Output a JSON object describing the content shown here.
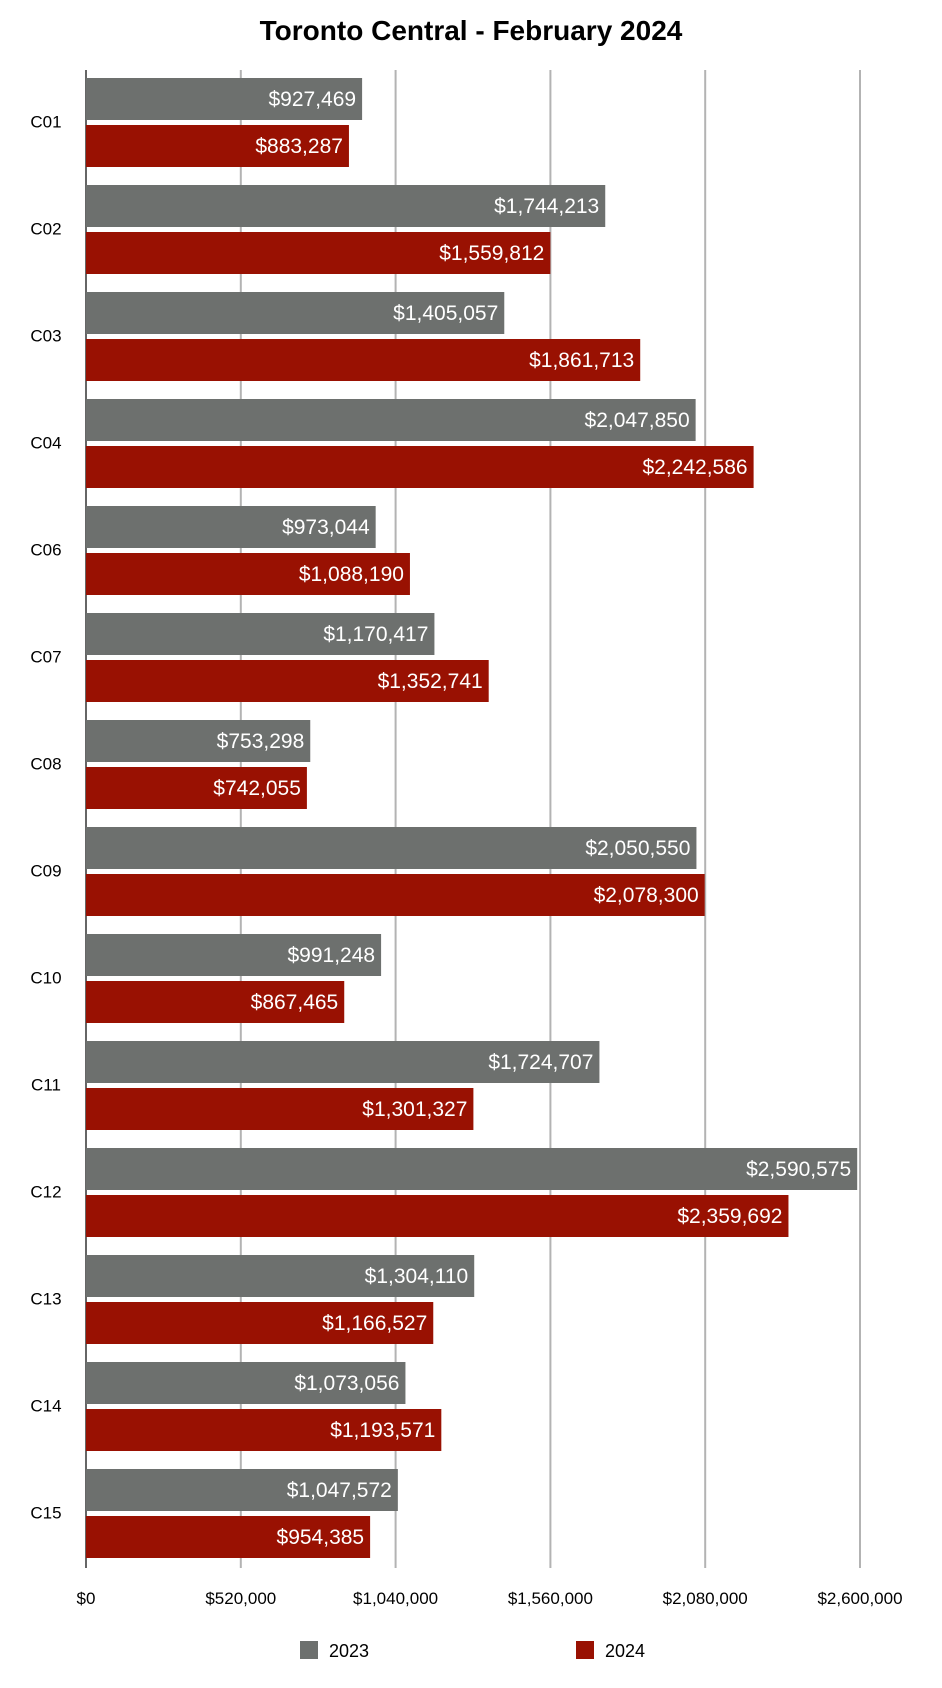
{
  "chart_data": {
    "type": "bar",
    "orientation": "horizontal",
    "title": "Toronto Central - February 2024",
    "xlabel": "",
    "ylabel": "",
    "categories": [
      "C01",
      "C02",
      "C03",
      "C04",
      "C06",
      "C07",
      "C08",
      "C09",
      "C10",
      "C11",
      "C12",
      "C13",
      "C14",
      "C15"
    ],
    "series": [
      {
        "name": "2023",
        "color": "#6d706e",
        "values": [
          927469,
          1744213,
          1405057,
          2047850,
          973044,
          1170417,
          753298,
          2050550,
          991248,
          1724707,
          2590575,
          1304110,
          1073056,
          1047572
        ],
        "labels": [
          "$927,469",
          "$1,744,213",
          "$1,405,057",
          "$2,047,850",
          "$973,044",
          "$1,170,417",
          "$753,298",
          "$2,050,550",
          "$991,248",
          "$1,724,707",
          "$2,590,575",
          "$1,304,110",
          "$1,073,056",
          "$1,047,572"
        ]
      },
      {
        "name": "2024",
        "color": "#991102",
        "values": [
          883287,
          1559812,
          1861713,
          2242586,
          1088190,
          1352741,
          742055,
          2078300,
          867465,
          1301327,
          2359692,
          1166527,
          1193571,
          954385
        ],
        "labels": [
          "$883,287",
          "$1,559,812",
          "$1,861,713",
          "$2,242,586",
          "$1,088,190",
          "$1,352,741",
          "$742,055",
          "$2,078,300",
          "$867,465",
          "$1,301,327",
          "$2,359,692",
          "$1,166,527",
          "$1,193,571",
          "$954,385"
        ]
      }
    ],
    "xlim": [
      0,
      2600000
    ],
    "xticks": [
      0,
      520000,
      1040000,
      1560000,
      2080000,
      2600000
    ],
    "xtick_labels": [
      "$0",
      "$520,000",
      "$1,040,000",
      "$1,560,000",
      "$2,080,000",
      "$2,600,000"
    ],
    "grid": true,
    "legend_position": "bottom",
    "data_labels": "inside-end"
  },
  "colors": {
    "grid": "#b3b3b3",
    "axis": "#333333"
  }
}
